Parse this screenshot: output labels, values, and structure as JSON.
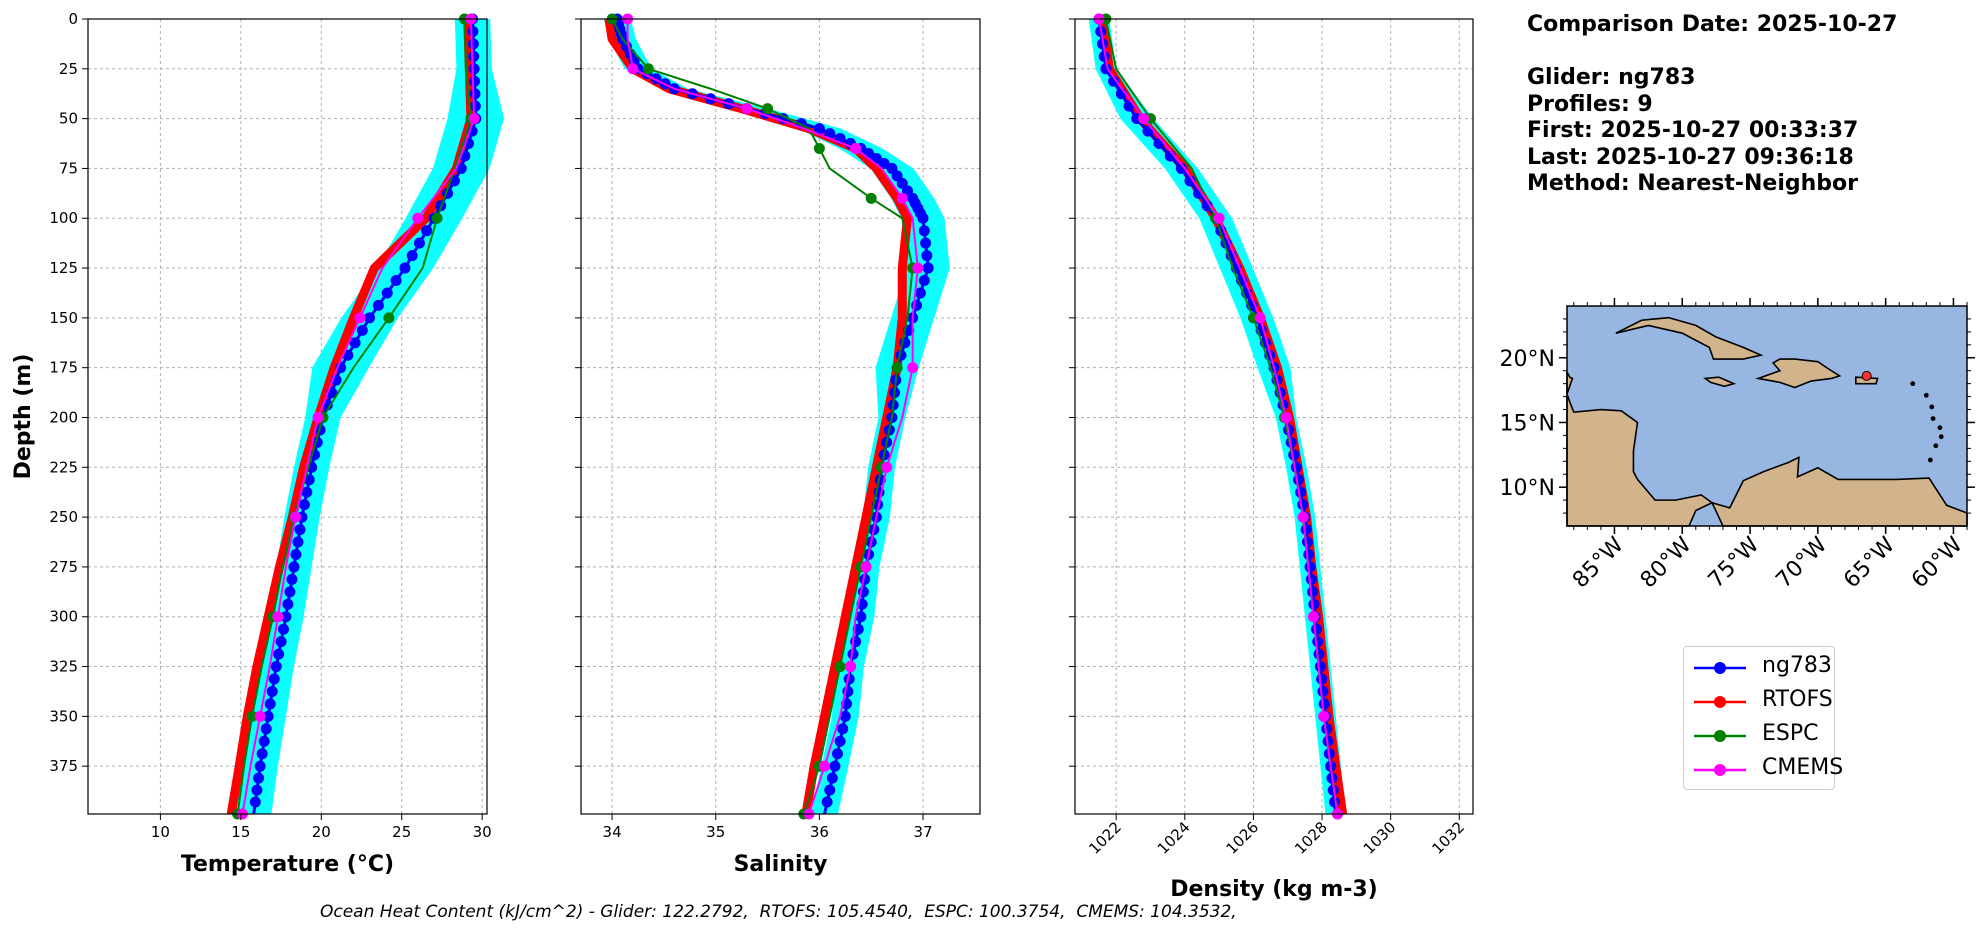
{
  "info": {
    "comparison_date": "Comparison Date: 2025-10-27",
    "glider": "Glider: ng783",
    "profiles": "Profiles: 9",
    "first": "First: 2025-10-27 00:33:37",
    "last": "Last: 2025-10-27 09:36:18",
    "method": "Method: Nearest-Neighbor"
  },
  "footer": "Ocean Heat Content (kJ/cm^2) - Glider: 122.2792,  RTOFS: 105.4540,  ESPC: 100.3754,  CMEMS: 104.3532,",
  "colors": {
    "glider": "#0000ff",
    "glider_envelope": "#00ffff",
    "rtofs": "#ff0000",
    "espc": "#008000",
    "cmems": "#ff00ff",
    "ocean": "#97b6e1",
    "land": "#d2b48c"
  },
  "legend": [
    {
      "name": "ng783",
      "color": "#0000ff"
    },
    {
      "name": "RTOFS",
      "color": "#ff0000"
    },
    {
      "name": "ESPC",
      "color": "#008000"
    },
    {
      "name": "CMEMS",
      "color": "#ff00ff"
    }
  ],
  "map": {
    "lat_ticks": [
      "20°N",
      "15°N",
      "10°N"
    ],
    "lon_ticks": [
      "85°W",
      "80°W",
      "75°W",
      "70°W",
      "65°W",
      "60°W"
    ],
    "glider_location": {
      "lon": -66.4,
      "lat": 18.6
    }
  },
  "chart_data": [
    {
      "type": "line",
      "xlabel": "Temperature (°C)",
      "ylabel": "Depth (m)",
      "xlim": [
        5.5,
        30.3
      ],
      "ylim": [
        399,
        0
      ],
      "xticks": [
        "10",
        "15",
        "20",
        "25",
        "30"
      ],
      "yticks": [
        "0",
        "25",
        "50",
        "75",
        "100",
        "125",
        "150",
        "175",
        "200",
        "225",
        "250",
        "275",
        "300",
        "325",
        "350",
        "375"
      ],
      "grid": true,
      "depth": [
        0,
        25,
        50,
        75,
        100,
        125,
        150,
        175,
        200,
        225,
        250,
        275,
        300,
        325,
        350,
        375,
        399
      ],
      "series": [
        {
          "name": "ng783",
          "values": [
            29.4,
            29.5,
            29.6,
            28.7,
            27.0,
            25.2,
            23.0,
            21.2,
            20.1,
            19.4,
            18.8,
            18.3,
            17.8,
            17.2,
            16.7,
            16.2,
            15.8
          ]
        },
        {
          "name": "RTOFS",
          "values": [
            29.1,
            29.2,
            29.3,
            28.4,
            26.5,
            23.3,
            22.0,
            20.8,
            19.8,
            18.9,
            18.2,
            17.4,
            16.7,
            16.0,
            15.4,
            14.9,
            14.4
          ]
        },
        {
          "name": "ESPC",
          "values": [
            28.9,
            29.0,
            29.3,
            28.3,
            27.2,
            26.3,
            24.2,
            22.0,
            20.1,
            19.2,
            18.3,
            17.6,
            17.0,
            16.3,
            15.7,
            15.2,
            14.8
          ]
        },
        {
          "name": "CMEMS",
          "values": [
            29.3,
            29.4,
            29.5,
            28.4,
            26.0,
            23.8,
            22.4,
            21.0,
            19.8,
            19.1,
            18.4,
            17.8,
            17.3,
            16.8,
            16.2,
            15.6,
            15.1
          ]
        }
      ]
    },
    {
      "type": "line",
      "xlabel": "Salinity",
      "xlim": [
        33.7,
        37.55
      ],
      "ylim": [
        399,
        0
      ],
      "xticks": [
        "34",
        "35",
        "36",
        "37"
      ],
      "grid": true,
      "depth": [
        0,
        10,
        25,
        35,
        45,
        55,
        65,
        75,
        90,
        100,
        125,
        150,
        175,
        200,
        225,
        250,
        275,
        300,
        325,
        350,
        375,
        399
      ],
      "series": [
        {
          "name": "ng783",
          "values": [
            34.05,
            34.1,
            34.25,
            34.6,
            35.3,
            36.0,
            36.4,
            36.7,
            36.9,
            37.0,
            37.05,
            36.9,
            36.75,
            36.7,
            36.6,
            36.55,
            36.45,
            36.4,
            36.3,
            36.25,
            36.15,
            36.05
          ]
        },
        {
          "name": "RTOFS",
          "values": [
            33.97,
            34.0,
            34.2,
            34.55,
            35.25,
            35.9,
            36.35,
            36.55,
            36.75,
            36.85,
            36.8,
            36.8,
            36.75,
            36.65,
            36.55,
            36.45,
            36.35,
            36.25,
            36.15,
            36.05,
            35.95,
            35.87
          ]
        },
        {
          "name": "ESPC",
          "values": [
            34.0,
            34.1,
            34.35,
            34.95,
            35.5,
            35.9,
            36.0,
            36.1,
            36.5,
            36.8,
            36.9,
            36.85,
            36.75,
            36.7,
            36.6,
            36.5,
            36.4,
            36.3,
            36.2,
            36.1,
            36.0,
            35.85
          ]
        },
        {
          "name": "CMEMS",
          "values": [
            34.15,
            34.15,
            34.2,
            34.6,
            35.3,
            35.85,
            36.35,
            36.6,
            36.8,
            36.9,
            36.95,
            36.9,
            36.9,
            36.8,
            36.65,
            36.55,
            36.45,
            36.35,
            36.3,
            36.2,
            36.05,
            35.9
          ]
        }
      ]
    },
    {
      "type": "line",
      "xlabel": "Density (kg m-3)",
      "xlim": [
        1020.8,
        1032.4
      ],
      "ylim": [
        399,
        0
      ],
      "xticks": [
        "1022",
        "1024",
        "1026",
        "1028",
        "1030",
        "1032"
      ],
      "grid": true,
      "depth": [
        0,
        25,
        50,
        75,
        100,
        125,
        150,
        175,
        200,
        225,
        250,
        275,
        300,
        325,
        350,
        375,
        399
      ],
      "series": [
        {
          "name": "ng783",
          "values": [
            1021.5,
            1021.7,
            1022.6,
            1023.9,
            1024.9,
            1025.5,
            1026.1,
            1026.6,
            1026.95,
            1027.25,
            1027.5,
            1027.65,
            1027.8,
            1027.95,
            1028.1,
            1028.25,
            1028.4
          ]
        },
        {
          "name": "RTOFS",
          "values": [
            1021.6,
            1021.8,
            1022.7,
            1024.0,
            1024.9,
            1025.6,
            1026.2,
            1026.7,
            1027.05,
            1027.3,
            1027.55,
            1027.7,
            1027.9,
            1028.05,
            1028.2,
            1028.4,
            1028.6
          ]
        },
        {
          "name": "ESPC",
          "values": [
            1021.7,
            1022.0,
            1023.0,
            1024.2,
            1024.9,
            1025.4,
            1026.0,
            1026.5,
            1026.9,
            1027.2,
            1027.45,
            1027.6,
            1027.75,
            1027.9,
            1028.05,
            1028.25,
            1028.45
          ]
        },
        {
          "name": "CMEMS",
          "values": [
            1021.5,
            1021.75,
            1022.8,
            1024.0,
            1025.0,
            1025.6,
            1026.2,
            1026.6,
            1026.95,
            1027.2,
            1027.45,
            1027.6,
            1027.75,
            1027.9,
            1028.05,
            1028.25,
            1028.45
          ]
        }
      ]
    }
  ]
}
